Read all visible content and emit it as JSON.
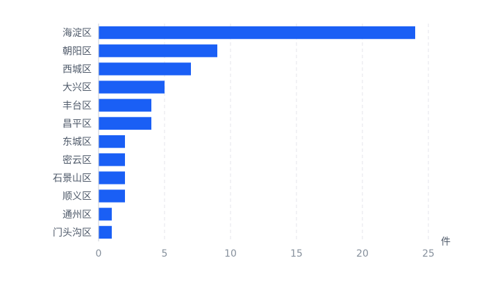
{
  "chart_data": {
    "type": "bar",
    "orientation": "horizontal",
    "categories": [
      "海淀区",
      "朝阳区",
      "西城区",
      "大兴区",
      "丰台区",
      "昌平区",
      "东城区",
      "密云区",
      "石景山区",
      "顺义区",
      "通州区",
      "门头沟区"
    ],
    "values": [
      24,
      9,
      7,
      5,
      4,
      4,
      2,
      2,
      2,
      2,
      1,
      1
    ],
    "x_ticks": [
      "0",
      "5",
      "10",
      "15",
      "20",
      "25"
    ],
    "xlim": [
      0,
      25
    ],
    "unit": "件",
    "grid": true,
    "legend": "none",
    "bar_color": "#1a5ff5"
  }
}
